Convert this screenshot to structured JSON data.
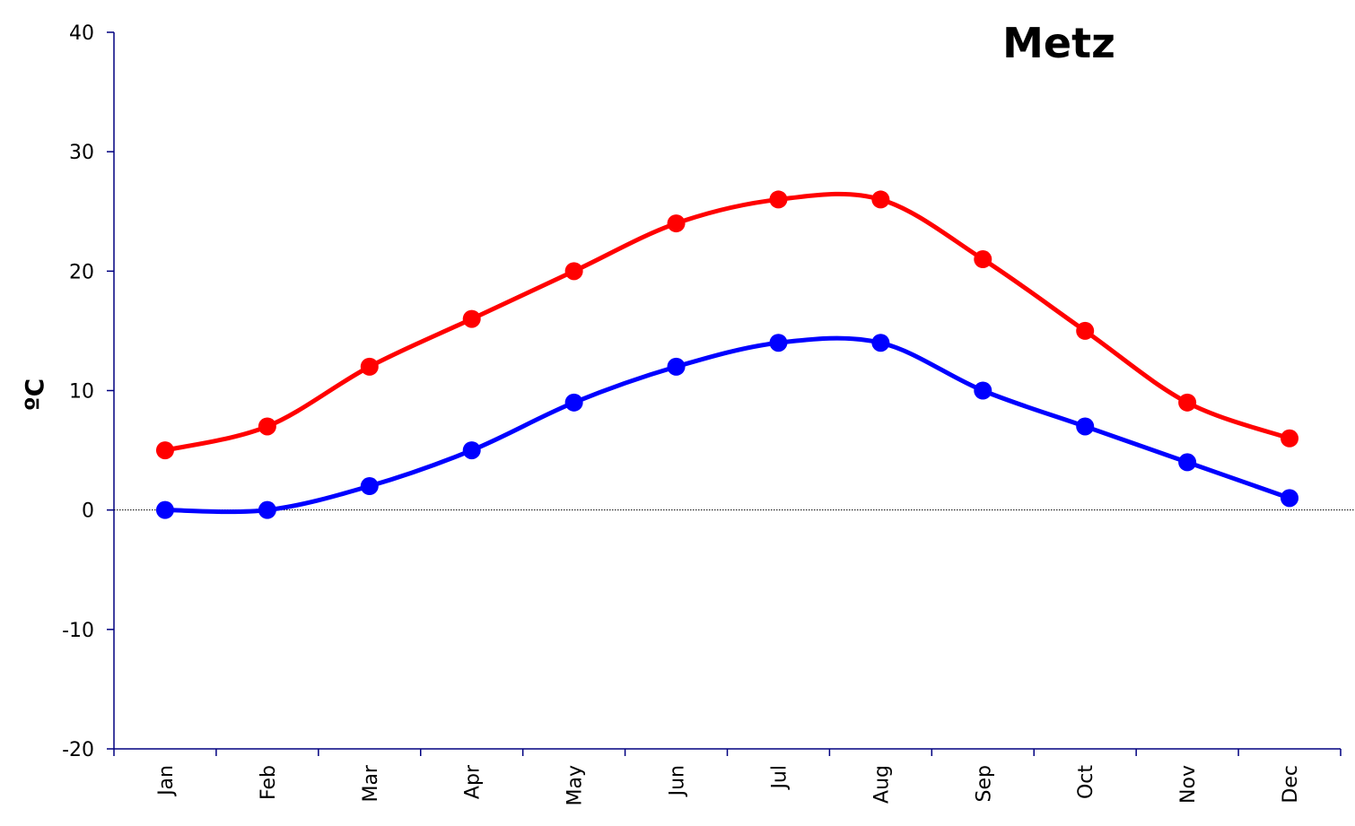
{
  "chart_data": {
    "type": "line",
    "title": "Metz",
    "ylabel": "ºC",
    "xlabel": "",
    "categories": [
      "Jan",
      "Feb",
      "Mar",
      "Apr",
      "May",
      "Jun",
      "Jul",
      "Aug",
      "Sep",
      "Oct",
      "Nov",
      "Dec"
    ],
    "ylim": [
      -20,
      40
    ],
    "yticks": [
      40,
      30,
      20,
      10,
      0,
      -10,
      -20
    ],
    "zero_line": true,
    "grid": false,
    "series": [
      {
        "key": "max",
        "color": "#ff0000",
        "values": [
          5,
          7,
          12,
          16,
          20,
          24,
          26,
          26,
          21,
          15,
          9,
          6
        ]
      },
      {
        "key": "min",
        "color": "#0000ff",
        "values": [
          0,
          0,
          2,
          5,
          9,
          12,
          14,
          14,
          10,
          7,
          4,
          1
        ]
      }
    ]
  }
}
